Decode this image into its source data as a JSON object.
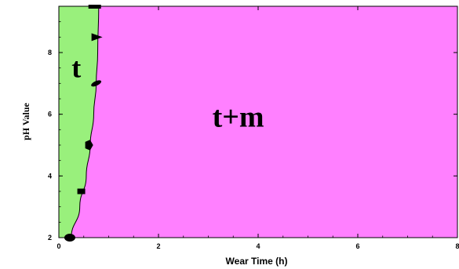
{
  "chart_data": {
    "type": "area",
    "title": "",
    "xlabel": "Wear Time (h)",
    "ylabel": "pH Value",
    "xlim": [
      0,
      8
    ],
    "ylim": [
      2,
      9.5
    ],
    "xticks": [
      0,
      2,
      4,
      6,
      8
    ],
    "yticks": [
      2,
      4,
      6,
      8
    ],
    "grid": false,
    "boundary": {
      "x": [
        0.25,
        0.42,
        0.55,
        0.63,
        0.7,
        0.75,
        0.78,
        0.8
      ],
      "y": [
        2.0,
        3.0,
        4.0,
        5.0,
        6.0,
        7.0,
        8.0,
        9.5
      ]
    },
    "regions": [
      {
        "label": "t",
        "color": "#99f07c",
        "label_at": [
          0.35,
          7.5
        ]
      },
      {
        "label": "t+m",
        "color": "#ff80ff",
        "label_at": [
          3.6,
          5.9
        ]
      }
    ],
    "markers": [
      {
        "shape": "ellipse",
        "x": 0.22,
        "y": 2.0
      },
      {
        "shape": "square",
        "x": 0.45,
        "y": 3.5
      },
      {
        "shape": "pentagon",
        "x": 0.6,
        "y": 5.0
      },
      {
        "shape": "ellipse-tilted",
        "x": 0.75,
        "y": 7.0
      },
      {
        "shape": "triangle-right",
        "x": 0.75,
        "y": 8.5
      },
      {
        "shape": "bar",
        "x": 0.72,
        "y": 9.5
      }
    ]
  }
}
